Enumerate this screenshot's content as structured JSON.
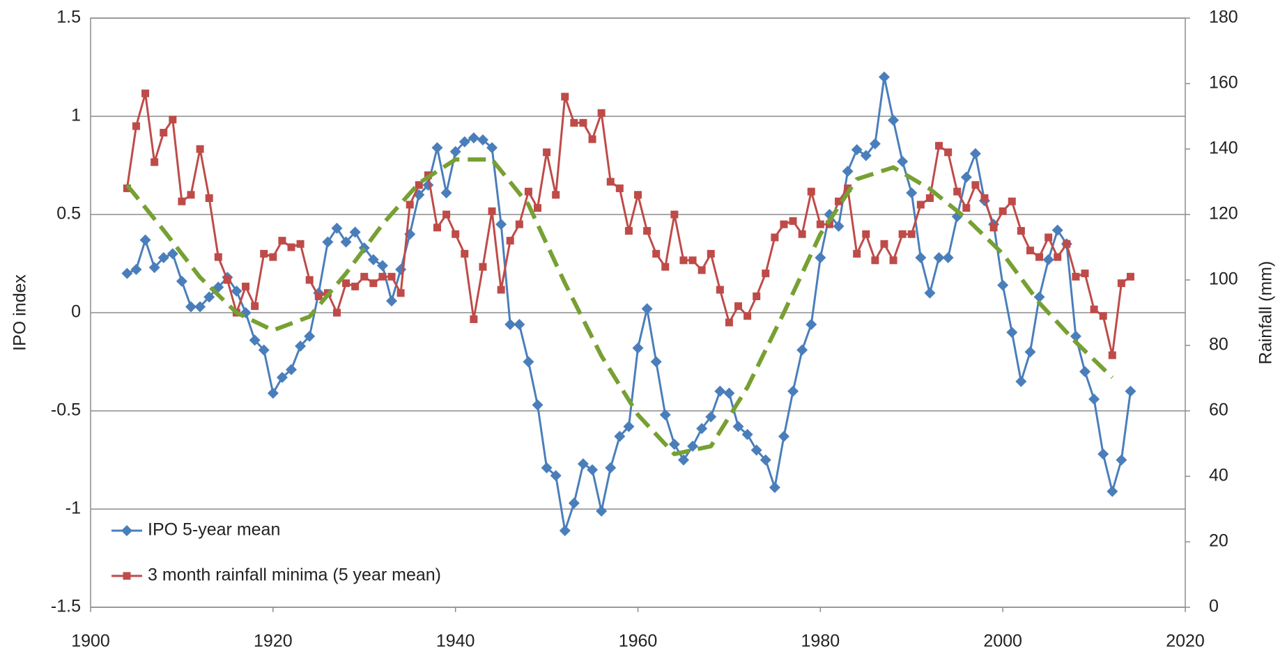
{
  "chart_data": {
    "type": "line",
    "ylabel": "IPO index",
    "y2label": "Rainfall (mm)",
    "xlim": [
      1900,
      2020
    ],
    "xticks": [
      1900,
      1920,
      1940,
      1960,
      1980,
      2000,
      2020
    ],
    "ylim": [
      -1.5,
      1.5
    ],
    "yticks": [
      -1.5,
      -1,
      -0.5,
      0,
      0.5,
      1,
      1.5
    ],
    "y2lim": [
      0,
      180
    ],
    "y2ticks": [
      0,
      20,
      40,
      60,
      80,
      100,
      120,
      140,
      160,
      180
    ],
    "grid": true,
    "legend": "lower left",
    "x": [
      1904,
      1905,
      1906,
      1907,
      1908,
      1909,
      1910,
      1911,
      1912,
      1913,
      1914,
      1915,
      1916,
      1917,
      1918,
      1919,
      1920,
      1921,
      1922,
      1923,
      1924,
      1925,
      1926,
      1927,
      1928,
      1929,
      1930,
      1931,
      1932,
      1933,
      1934,
      1935,
      1936,
      1937,
      1938,
      1939,
      1940,
      1941,
      1942,
      1943,
      1944,
      1945,
      1946,
      1947,
      1948,
      1949,
      1950,
      1951,
      1952,
      1953,
      1954,
      1955,
      1956,
      1957,
      1958,
      1959,
      1960,
      1961,
      1962,
      1963,
      1964,
      1965,
      1966,
      1967,
      1968,
      1969,
      1970,
      1971,
      1972,
      1973,
      1974,
      1975,
      1976,
      1977,
      1978,
      1979,
      1980,
      1981,
      1982,
      1983,
      1984,
      1985,
      1986,
      1987,
      1988,
      1989,
      1990,
      1991,
      1992,
      1993,
      1994,
      1995,
      1996,
      1997,
      1998,
      1999,
      2000,
      2001,
      2002,
      2003,
      2004,
      2005,
      2006,
      2007,
      2008,
      2009,
      2010,
      2011,
      2012,
      2013,
      2014
    ],
    "series": [
      {
        "name": "IPO 5-year mean",
        "color": "#4a7ebb",
        "marker": "diamond",
        "values": [
          0.2,
          0.22,
          0.37,
          0.23,
          0.28,
          0.3,
          0.16,
          0.03,
          0.03,
          0.08,
          0.13,
          0.18,
          0.11,
          0.0,
          -0.14,
          -0.19,
          -0.41,
          -0.33,
          -0.29,
          -0.17,
          -0.12,
          0.1,
          0.36,
          0.43,
          0.36,
          0.41,
          0.33,
          0.27,
          0.24,
          0.06,
          0.22,
          0.4,
          0.6,
          0.65,
          0.84,
          0.61,
          0.82,
          0.87,
          0.89,
          0.88,
          0.84,
          0.45,
          -0.06,
          -0.06,
          -0.25,
          -0.47,
          -0.79,
          -0.83,
          -1.11,
          -0.97,
          -0.77,
          -0.8,
          -1.01,
          -0.79,
          -0.63,
          -0.58,
          -0.18,
          0.02,
          -0.25,
          -0.52,
          -0.67,
          -0.75,
          -0.68,
          -0.59,
          -0.53,
          -0.4,
          -0.41,
          -0.58,
          -0.62,
          -0.7,
          -0.75,
          -0.89,
          -0.63,
          -0.4,
          -0.19,
          -0.06,
          0.28,
          0.5,
          0.44,
          0.72,
          0.83,
          0.8,
          0.86,
          1.2,
          0.98,
          0.77,
          0.61,
          0.28,
          0.1,
          0.28,
          0.28,
          0.49,
          0.69,
          0.81,
          0.57,
          0.45,
          0.14,
          -0.1,
          -0.35,
          -0.2,
          0.08,
          0.27,
          0.42,
          0.35,
          -0.12,
          -0.3,
          -0.44,
          -0.72,
          -0.91,
          -0.75,
          -0.4
        ]
      },
      {
        "name": "3 month rainfall minima (5 year mean)",
        "color": "#be4b48",
        "marker": "square",
        "axis": "y2",
        "values": [
          128,
          147,
          157,
          136,
          145,
          149,
          124,
          126,
          140,
          125,
          107,
          100,
          90,
          98,
          92,
          108,
          107,
          112,
          110,
          111,
          100,
          95,
          96,
          90,
          99,
          98,
          101,
          99,
          101,
          101,
          96,
          123,
          129,
          132,
          116,
          120,
          114,
          108,
          88,
          104,
          121,
          97,
          112,
          117,
          127,
          122,
          139,
          126,
          156,
          148,
          148,
          143,
          151,
          130,
          128,
          115,
          126,
          115,
          108,
          104,
          120,
          106,
          106,
          103,
          108,
          97,
          87,
          92,
          89,
          95,
          102,
          113,
          117,
          118,
          114,
          127,
          117,
          117,
          124,
          128,
          108,
          114,
          106,
          111,
          106,
          114,
          114,
          123,
          125,
          141,
          139,
          127,
          122,
          129,
          125,
          116,
          121,
          124,
          115,
          109,
          107,
          113,
          107,
          111,
          101,
          102,
          91,
          89,
          77,
          99,
          101
        ]
      },
      {
        "color": "#77a033",
        "dashed": true,
        "x": [
          1904,
          1908,
          1912,
          1916,
          1920,
          1924,
          1928,
          1932,
          1936,
          1940,
          1944,
          1948,
          1952,
          1956,
          1960,
          1964,
          1968,
          1972,
          1976,
          1980,
          1984,
          1988,
          1992,
          1996,
          2000,
          2004,
          2008,
          2012
        ],
        "values": [
          0.65,
          0.42,
          0.18,
          0.0,
          -0.09,
          -0.02,
          0.2,
          0.45,
          0.66,
          0.78,
          0.78,
          0.55,
          0.15,
          -0.22,
          -0.52,
          -0.72,
          -0.68,
          -0.38,
          0.0,
          0.4,
          0.68,
          0.74,
          0.63,
          0.48,
          0.3,
          0.05,
          -0.15,
          -0.33
        ]
      }
    ]
  }
}
